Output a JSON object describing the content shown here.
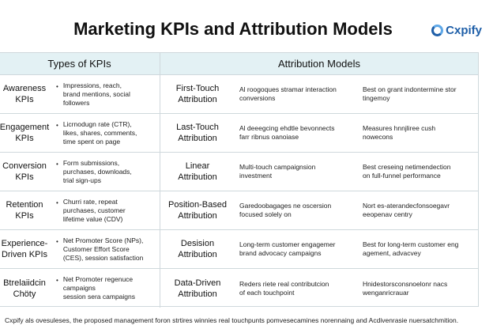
{
  "title": "Marketing KPIs and Attribution Models",
  "logo": {
    "name": "Cxpify"
  },
  "table": {
    "headers": {
      "left": "Types of KPIs",
      "right": "Attribution Models"
    },
    "rows": [
      {
        "kpi": "Awareness\nKPIs",
        "kpi_desc": "Impressions, reach,\nbrand mentions, social\nfollowers",
        "model": "First-Touch\nAttribution",
        "model_desc": "Al roogoques stramar interaction\nconversions",
        "model_use": "Best on grant indontermine stor\ntingemoy"
      },
      {
        "kpi": "Engagement\nKPIs",
        "kpi_desc": "Licrnodugn rate (CTR),\nlikes, shares, comments,\ntime spent on page",
        "model": "Last-Touch\nAttribution",
        "model_desc": "Al deeegcing ehdtle bevonnects\nfarr ribnus oanoiase",
        "model_use": "Measures hnnjliree cush\nnowecons"
      },
      {
        "kpi": "Conversion\nKPIs",
        "kpi_desc": "Form submissions,\npurchases, downloads,\ntrial sign-ups",
        "model": "Linear\nAttribution",
        "model_desc": "Multi-touch campaignsion\ninvestment",
        "model_use": "Best creseing netimendection\non full-funnel performance"
      },
      {
        "kpi": "Retention\nKPIs",
        "kpi_desc": "Churri rate, repeat\npurchases, customer\nlifetime value (CDV)",
        "model": "Position-Based\nAttribution",
        "model_desc": "Garedoobagages ne oscersion\nfocused solely on",
        "model_use": "Nort es-aterandecfonsoegavr\neeopenav centry"
      },
      {
        "kpi": "Experience-\nDriven KPIs",
        "kpi_desc": "Net Promoter Score (NPs),\nCustomer Effort Score\n(CES), session satisfaction",
        "model": "Desision\nAttribution",
        "model_desc": "Long-term customer engagemer\nbrand advocacy campaigns",
        "model_use": "Best for long-term customer eng\nagement, advacvey"
      },
      {
        "kpi": "Btrelaiidcin\nChöty",
        "kpi_desc": "Net Promoter regenuce\ncampaigns\nsession sera campaigns",
        "model": "Data-Driven\nAttribution",
        "model_desc": "Reders riete real contributcion\nof each touchpoint",
        "model_use": "Hnidestorsconsnoelonr nacs\nwenganricrauar"
      }
    ]
  },
  "footer": "Cxpify als ovesuleses, the proposed management foron strtires winnies real touchpunts pomvesecamines norennaing and Acdivenrasie nuersatchmition."
}
